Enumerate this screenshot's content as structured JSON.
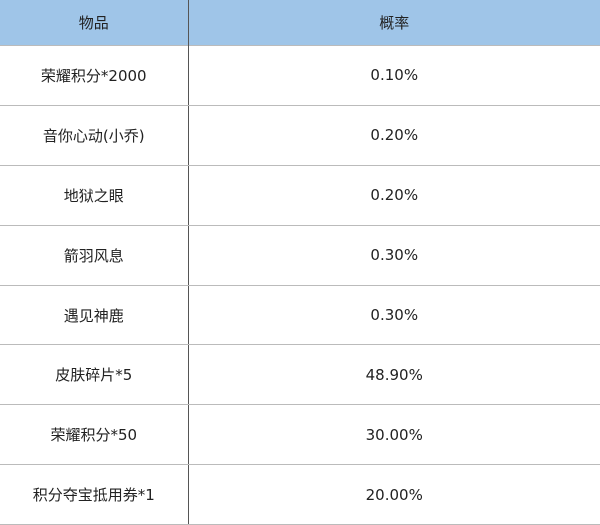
{
  "table": {
    "headers": [
      "物品",
      "概率"
    ],
    "header_color": "#9fc5e8",
    "rows": [
      {
        "item": "荣耀积分*2000",
        "prob": "0.10%"
      },
      {
        "item": "音你心动(小乔)",
        "prob": "0.20%"
      },
      {
        "item": "地狱之眼",
        "prob": "0.20%"
      },
      {
        "item": "箭羽风息",
        "prob": "0.30%"
      },
      {
        "item": "遇见神鹿",
        "prob": "0.30%"
      },
      {
        "item": "皮肤碎片*5",
        "prob": "48.90%"
      },
      {
        "item": "荣耀积分*50",
        "prob": "30.00%"
      },
      {
        "item": "积分夺宝抵用券*1",
        "prob": "20.00%"
      }
    ]
  }
}
